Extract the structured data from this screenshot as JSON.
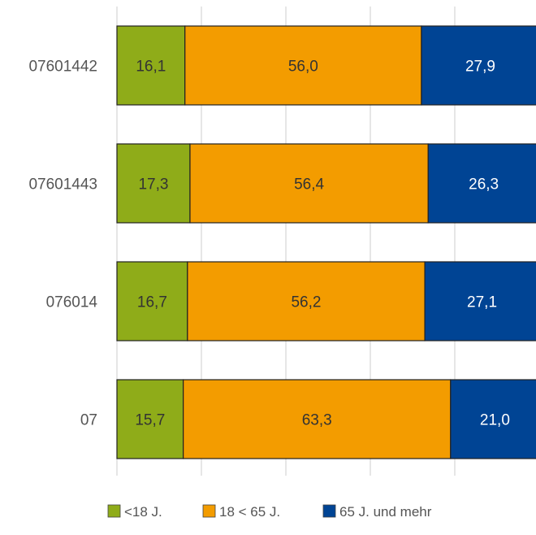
{
  "chart_data": {
    "type": "bar",
    "orientation": "horizontal",
    "stacked": true,
    "categories": [
      "07601442",
      "07601443",
      "076014",
      "07"
    ],
    "series": [
      {
        "name": "<18 J.",
        "values": [
          "16,1",
          "17,3",
          "16,7",
          "15,7"
        ],
        "color": "#8fac19"
      },
      {
        "name": "18 < 65 J.",
        "values": [
          "56,0",
          "56,4",
          "56,2",
          "63,3"
        ],
        "color": "#f39c00"
      },
      {
        "name": "65 J. und mehr",
        "values": [
          "27,9",
          "26,3",
          "27,1",
          "21,0"
        ],
        "color": "#004494"
      }
    ],
    "xlim": [
      0,
      100
    ],
    "grid": true,
    "legend_position": "bottom",
    "label_color": "#555555",
    "grid_color": "#d9d9d9",
    "border_color": "#222222"
  }
}
